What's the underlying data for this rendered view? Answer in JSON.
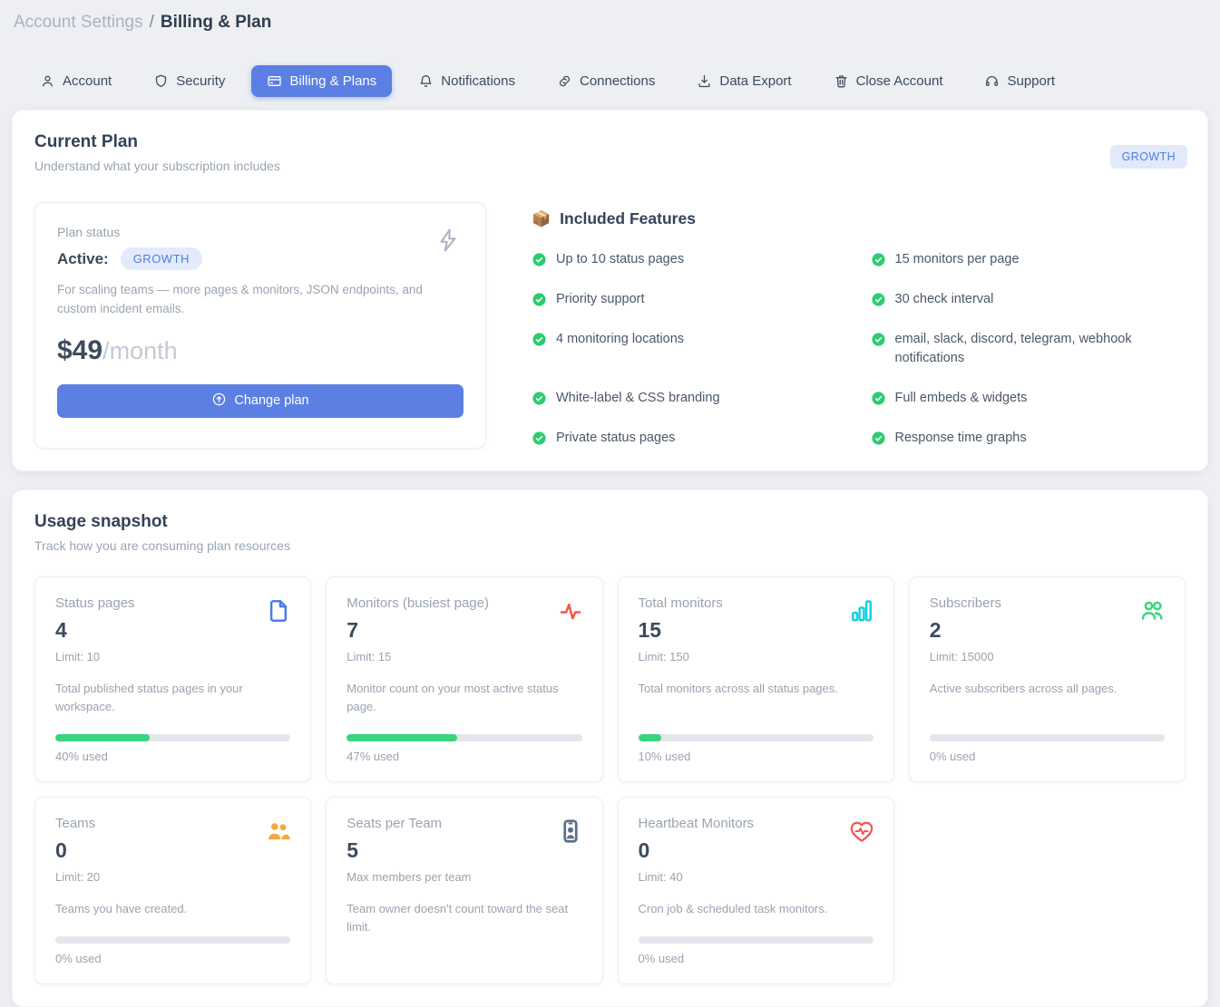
{
  "breadcrumb": {
    "section": "Account Settings",
    "separator": "/",
    "page": "Billing & Plan"
  },
  "tabs": [
    {
      "label": "Account",
      "icon": "user",
      "active": false
    },
    {
      "label": "Security",
      "icon": "shield",
      "active": false
    },
    {
      "label": "Billing & Plans",
      "icon": "credit-card",
      "active": true
    },
    {
      "label": "Notifications",
      "icon": "bell",
      "active": false
    },
    {
      "label": "Connections",
      "icon": "link",
      "active": false
    },
    {
      "label": "Data Export",
      "icon": "download",
      "active": false
    },
    {
      "label": "Close Account",
      "icon": "trash",
      "active": false
    },
    {
      "label": "Support",
      "icon": "headset",
      "active": false
    }
  ],
  "current_plan": {
    "title": "Current Plan",
    "subtitle": "Understand what your subscription includes",
    "corner_badge": "GROWTH",
    "plan_status": {
      "label": "Plan status",
      "status_prefix": "Active:",
      "plan_badge": "GROWTH",
      "description": "For scaling teams — more pages & monitors, JSON endpoints, and custom incident emails.",
      "price": "$49",
      "period": "/month",
      "change_button": "Change plan"
    },
    "features": {
      "title": "Included Features",
      "title_icon": "📦",
      "items": [
        "Up to 10 status pages",
        "15 monitors per page",
        "Priority support",
        "30 check interval",
        "4 monitoring locations",
        "email, slack, discord, telegram, webhook notifications",
        "White-label & CSS branding",
        "Full embeds & widgets",
        "Private status pages",
        "Response time graphs"
      ]
    }
  },
  "usage": {
    "title": "Usage snapshot",
    "subtitle": "Track how you are consuming plan resources",
    "cards": [
      {
        "title": "Status pages",
        "value": "4",
        "limit_label": "Limit: 10",
        "description": "Total published status pages in your workspace.",
        "progress_pct": 40,
        "used_label": "40% used",
        "icon": "file",
        "icon_color": "#4a7ee8"
      },
      {
        "title": "Monitors (busiest page)",
        "value": "7",
        "limit_label": "Limit: 15",
        "description": "Monitor count on your most active status page.",
        "progress_pct": 47,
        "used_label": "47% used",
        "icon": "activity",
        "icon_color": "#f4564f"
      },
      {
        "title": "Total monitors",
        "value": "15",
        "limit_label": "Limit: 150",
        "description": "Total monitors across all status pages.",
        "progress_pct": 10,
        "used_label": "10% used",
        "icon": "bar-chart",
        "icon_color": "#17d1e0"
      },
      {
        "title": "Subscribers",
        "value": "2",
        "limit_label": "Limit: 15000",
        "description": "Active subscribers across all pages.",
        "progress_pct": 0,
        "used_label": "0% used",
        "icon": "users-outline",
        "icon_color": "#3bd685"
      },
      {
        "title": "Teams",
        "value": "0",
        "limit_label": "Limit: 20",
        "description": "Teams you have created.",
        "progress_pct": 0,
        "used_label": "0% used",
        "icon": "users-filled",
        "icon_color": "#f5a742"
      },
      {
        "title": "Seats per Team",
        "value": "5",
        "limit_label": "Max members per team",
        "description": "Team owner doesn't count toward the seat limit.",
        "progress_pct": null,
        "used_label": null,
        "icon": "id-badge",
        "icon_color": "#5c6e87"
      },
      {
        "title": "Heartbeat Monitors",
        "value": "0",
        "limit_label": "Limit: 40",
        "description": "Cron job & scheduled task monitors.",
        "progress_pct": 0,
        "used_label": "0% used",
        "icon": "heart-pulse",
        "icon_color": "#f4564f"
      }
    ]
  },
  "colors": {
    "accent_blue": "#5b7fe3",
    "badge_bg": "#e1e9fb",
    "badge_text": "#507de0",
    "check_green": "#2ecc71",
    "progress_green": "#38d57d",
    "progress_track": "#e3e6eb"
  }
}
